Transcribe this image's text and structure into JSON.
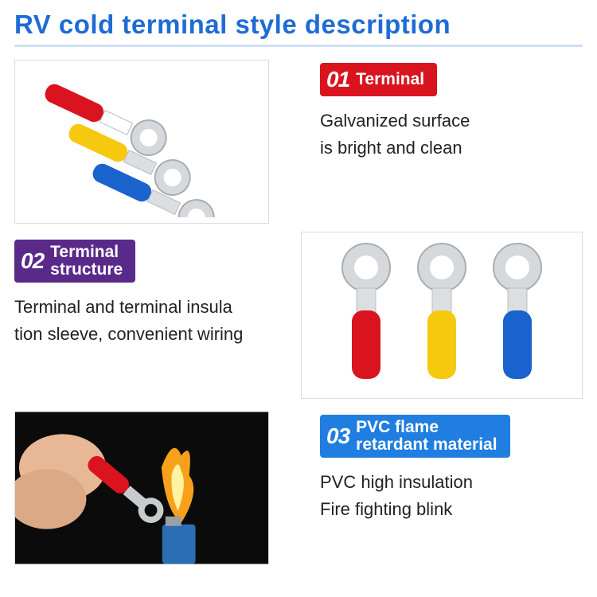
{
  "title": "RV cold terminal style description",
  "title_color": "#1f6bd6",
  "underline_color": "#cfe0f6",
  "colors": {
    "red": "#d9141f",
    "yellow": "#f6c90e",
    "blue": "#1a63cc",
    "purple": "#5a2a8a",
    "bright_blue": "#1f7ee0",
    "text": "#222222"
  },
  "sections": [
    {
      "num": "01",
      "label": "Terminal",
      "badge_bg": "#d9141f",
      "desc": "Galvanized surface\nis bright and clean"
    },
    {
      "num": "02",
      "label": "Terminal\nstructure",
      "badge_bg": "#5a2a8a",
      "desc": "Terminal and terminal insula\ntion sleeve, convenient wiring"
    },
    {
      "num": "03",
      "label": "PVC flame\nretardant material",
      "badge_bg": "#1f7ee0",
      "desc": "PVC high insulation\nFire fighting blink"
    }
  ]
}
